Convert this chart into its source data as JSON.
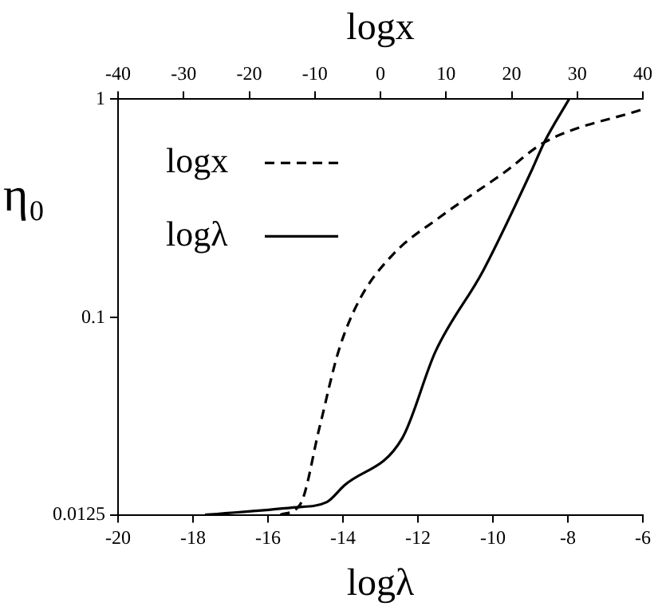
{
  "chart_data": {
    "type": "line",
    "xlabel": "logλ",
    "x2label": "logx",
    "ylabel": "η₀",
    "xlim": [
      -20,
      -6
    ],
    "xticks": [
      -20,
      -18,
      -16,
      -14,
      -12,
      -10,
      -8,
      -6
    ],
    "x2lim": [
      -40,
      40
    ],
    "x2ticks": [
      -40,
      -30,
      -20,
      -10,
      0,
      10,
      20,
      30,
      40
    ],
    "ylim": [
      0.0125,
      1
    ],
    "yticks": [
      0.0125,
      0.1,
      1
    ],
    "log": "y",
    "grid": false,
    "legend": "top left",
    "marker": "none",
    "series": [
      {
        "name": "logx",
        "color": "#000000",
        "line_style": "dashed",
        "axis": "x2",
        "x": [
          -15.25,
          -12.2,
          -9.3,
          -6.4,
          -3.3,
          1.8,
          9.1,
          18.8,
          25.0,
          40
        ],
        "values": [
          0.0125,
          0.014,
          0.0313,
          0.07,
          0.119,
          0.193,
          0.289,
          0.46,
          0.635,
          0.9
        ]
      },
      {
        "name": "logλ",
        "color": "#000000",
        "line_style": "solid",
        "x": [
          -17.68,
          -15.32,
          -14.43,
          -13.97,
          -12.42,
          -11.53,
          -10.26,
          -8.94,
          -8.63,
          -7.97
        ],
        "values": [
          0.0125,
          0.0135,
          0.0143,
          0.017,
          0.028,
          0.07,
          0.164,
          0.483,
          0.635,
          1
        ]
      }
    ]
  }
}
